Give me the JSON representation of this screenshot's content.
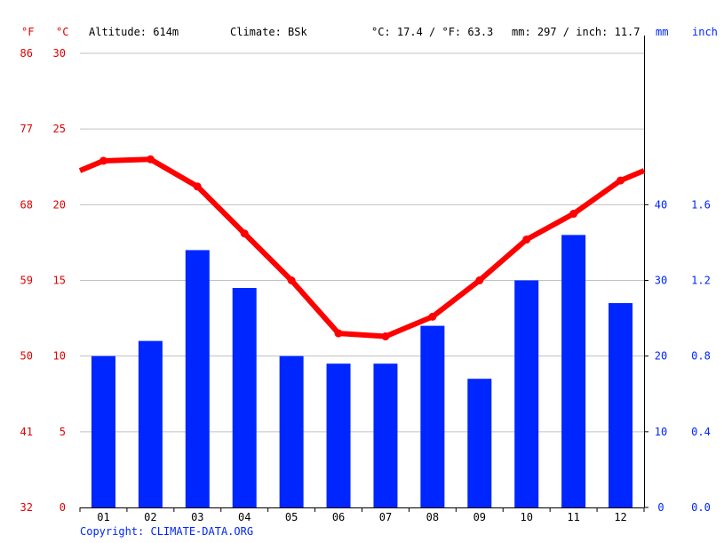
{
  "header": {
    "unit_f": "°F",
    "unit_c": "°C",
    "altitude": "Altitude: 614m",
    "climate": "Climate: BSk",
    "temp_avg": "°C: 17.4 / °F: 63.3",
    "precip_total": "mm: 297 / inch: 11.7",
    "unit_mm": "mm",
    "unit_inch": "inch"
  },
  "footer": {
    "copyright": "Copyright: CLIMATE-DATA.ORG"
  },
  "colors": {
    "temperature": "#ff0000",
    "precipitation": "#0026ff",
    "axis_temp": "#e00000",
    "axis_precip": "#0026ff",
    "grid": "#c0c0c0"
  },
  "chart_data": {
    "type": "bar",
    "categories": [
      "01",
      "02",
      "03",
      "04",
      "05",
      "06",
      "07",
      "08",
      "09",
      "10",
      "11",
      "12"
    ],
    "series": [
      {
        "values": [
          20,
          22,
          34,
          29,
          20,
          19,
          19,
          24,
          17,
          30,
          36,
          27
        ]
      },
      {
        "values": [
          22.9,
          23.0,
          21.2,
          18.1,
          15.0,
          11.5,
          11.3,
          12.6,
          15.0,
          17.7,
          19.4,
          21.6
        ]
      }
    ],
    "temp_axis_c": {
      "ticks": [
        "0",
        "5",
        "10",
        "15",
        "20",
        "25",
        "30"
      ],
      "range": [
        0,
        30
      ]
    },
    "temp_axis_f": {
      "ticks": [
        "32",
        "41",
        "50",
        "59",
        "68",
        "77",
        "86"
      ]
    },
    "precip_axis_mm": {
      "ticks": [
        "0",
        "10",
        "20",
        "30",
        "40"
      ],
      "range": [
        0,
        60
      ]
    },
    "precip_axis_inch": {
      "ticks": [
        "0.0",
        "0.4",
        "0.8",
        "1.2",
        "1.6"
      ]
    },
    "grid": true
  }
}
